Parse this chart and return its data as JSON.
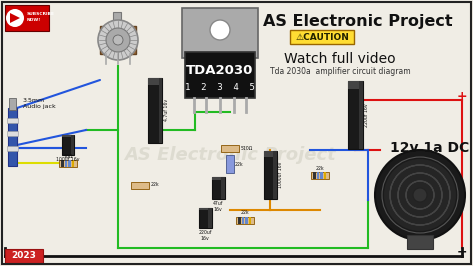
{
  "bg_color": "#f0ede5",
  "border_color": "#222222",
  "title_text": "AS Electronic Project",
  "caution_text": "⚠CAUTION",
  "watch_text": "Watch full video",
  "subtitle_text": "Tda 2030a  amplifier circuit diagram",
  "ic_label": "TDA2030",
  "ic_pins": "1  2  3  4  5",
  "year_text": "2023",
  "dc_label": "12v 1a DC",
  "audio_label": "3.5mm\nAudio jack",
  "watermark": "AS Electronic Project",
  "wire_colors": {
    "green": "#22bb22",
    "blue": "#2255dd",
    "red": "#dd1111",
    "orange": "#dd8800",
    "black": "#111111",
    "yellow": "#dddd00"
  },
  "subscribe_bg": "#cc0000",
  "ic_body_color": "#999999",
  "ic_black_color": "#111111",
  "lw": 1.5
}
